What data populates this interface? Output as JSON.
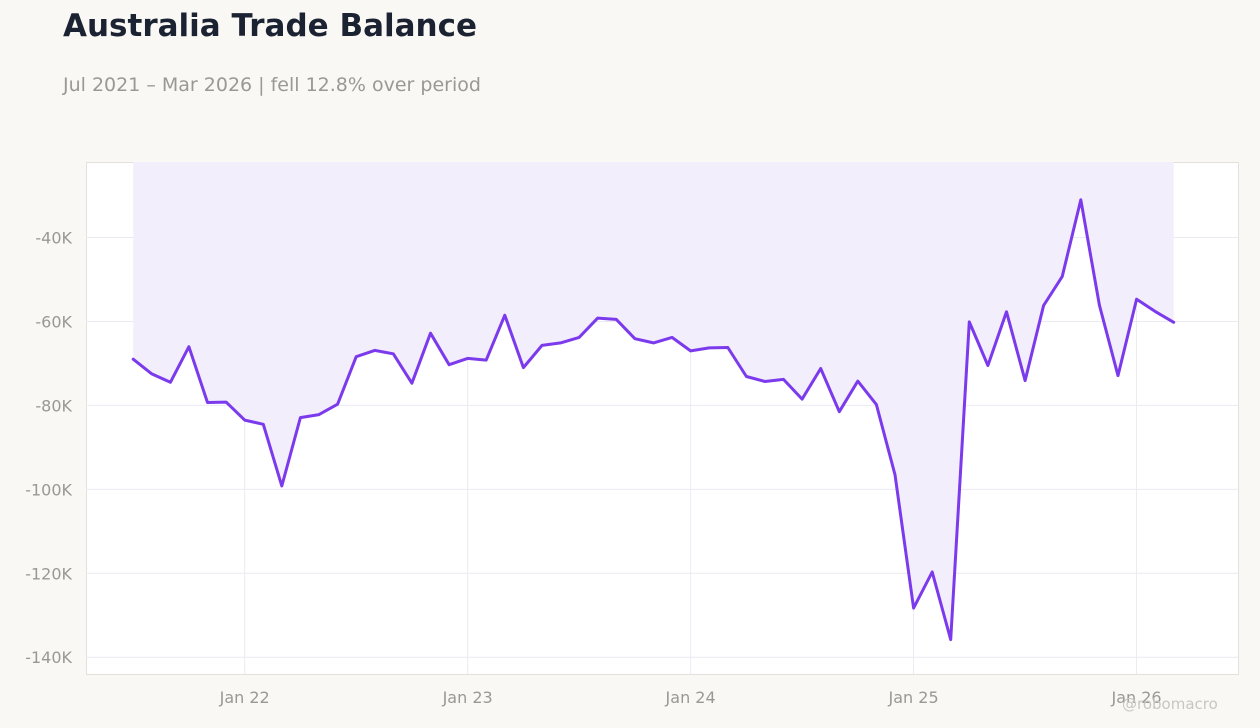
{
  "header": {
    "title": "Australia Trade Balance",
    "subtitle": "Jul 2021 – Mar 2026 | fell 12.8% over period"
  },
  "watermark": "@robomacro",
  "colors": {
    "line": "#7c3aed",
    "fill": "#f2eefc",
    "plot_bg": "#ffffff",
    "page_bg": "#f9f8f5",
    "grid": "#ece9f2",
    "tick_text": "#9b9893"
  },
  "chart_data": {
    "type": "area",
    "title": "Australia Trade Balance",
    "subtitle": "Jul 2021 – Mar 2026 | fell 12.8% over period",
    "xlabel": "",
    "ylabel": "",
    "x_start": "2021-07",
    "x_end": "2026-03",
    "xlim": [
      "2021-04-15",
      "2026-06-15"
    ],
    "ylim": [
      -144000,
      -22000
    ],
    "grid": true,
    "legend": "none",
    "x_ticks": [
      {
        "date": "2022-01",
        "label": "Jan 22"
      },
      {
        "date": "2023-01",
        "label": "Jan 23"
      },
      {
        "date": "2024-01",
        "label": "Jan 24"
      },
      {
        "date": "2025-01",
        "label": "Jan 25"
      },
      {
        "date": "2026-01",
        "label": "Jan 26"
      }
    ],
    "y_ticks": [
      {
        "value": -40000,
        "label": "-40K"
      },
      {
        "value": -60000,
        "label": "-60K"
      },
      {
        "value": -80000,
        "label": "-80K"
      },
      {
        "value": -100000,
        "label": "-100K"
      },
      {
        "value": -120000,
        "label": "-120K"
      },
      {
        "value": -140000,
        "label": "-140K"
      }
    ],
    "series": [
      {
        "x": [
          "2021-07",
          "2021-08",
          "2021-09",
          "2021-10",
          "2021-11",
          "2021-12",
          "2022-01",
          "2022-02",
          "2022-03",
          "2022-04",
          "2022-05",
          "2022-06",
          "2022-07",
          "2022-08",
          "2022-09",
          "2022-10",
          "2022-11",
          "2022-12",
          "2023-01",
          "2023-02",
          "2023-03",
          "2023-04",
          "2023-05",
          "2023-06",
          "2023-07",
          "2023-08",
          "2023-09",
          "2023-10",
          "2023-11",
          "2023-12",
          "2024-01",
          "2024-02",
          "2024-03",
          "2024-04",
          "2024-05",
          "2024-06",
          "2024-07",
          "2024-08",
          "2024-09",
          "2024-10",
          "2024-11",
          "2024-12",
          "2025-01",
          "2025-02",
          "2025-03",
          "2025-04",
          "2025-05",
          "2025-06",
          "2025-07",
          "2025-08",
          "2025-09",
          "2025-10",
          "2025-11",
          "2025-12",
          "2026-01",
          "2026-02",
          "2026-03"
        ],
        "values": [
          -69000,
          -72500,
          -74500,
          -66000,
          -79300,
          -79200,
          -83500,
          -84500,
          -99200,
          -82900,
          -82200,
          -79700,
          -68400,
          -66900,
          -67700,
          -74700,
          -62800,
          -70300,
          -68800,
          -69200,
          -58500,
          -71000,
          -65700,
          -65100,
          -63800,
          -59200,
          -59500,
          -64100,
          -65100,
          -63800,
          -67000,
          -66300,
          -66200,
          -73100,
          -74300,
          -73800,
          -78500,
          -71200,
          -81500,
          -74200,
          -79800,
          -96500,
          -128300,
          -119700,
          -135800,
          -60100,
          -70500,
          -57700,
          -74100,
          -56200,
          -49300,
          -31000,
          -56100,
          -72900,
          -54700,
          -57600,
          -60200
        ]
      }
    ]
  }
}
